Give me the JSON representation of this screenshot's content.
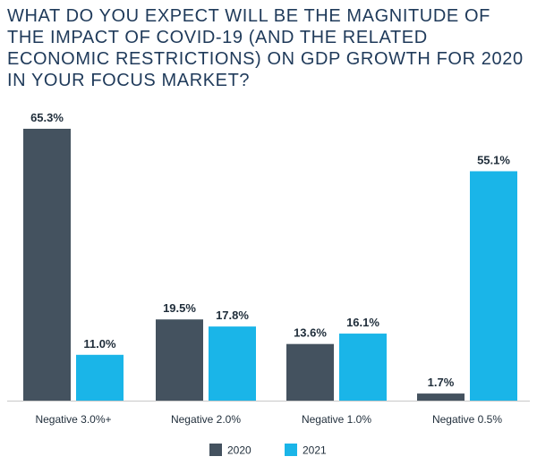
{
  "chart_data": {
    "type": "bar",
    "title": "WHAT DO YOU EXPECT WILL BE THE MAGNITUDE OF THE IMPACT OF COVID-19 (AND THE RELATED ECONOMIC RESTRICTIONS) ON GDP GROWTH FOR 2020 IN YOUR FOCUS MARKET?",
    "categories": [
      "Negative 3.0%+",
      "Negative 2.0%",
      "Negative 1.0%",
      "Negative 0.5%"
    ],
    "series": [
      {
        "name": "2020",
        "color": "#44525f",
        "values": [
          65.3,
          19.5,
          13.6,
          1.7
        ],
        "labels": [
          "65.3%",
          "19.5%",
          "13.6%",
          "1.7%"
        ]
      },
      {
        "name": "2021",
        "color": "#1ab5e8",
        "values": [
          11.0,
          17.8,
          16.1,
          55.1
        ],
        "labels": [
          "11.0%",
          "17.8%",
          "16.1%",
          "55.1%"
        ]
      }
    ],
    "ylim": [
      0,
      65.3
    ],
    "grid": false,
    "legend": "bottom-center",
    "xlabel": "",
    "ylabel": ""
  }
}
